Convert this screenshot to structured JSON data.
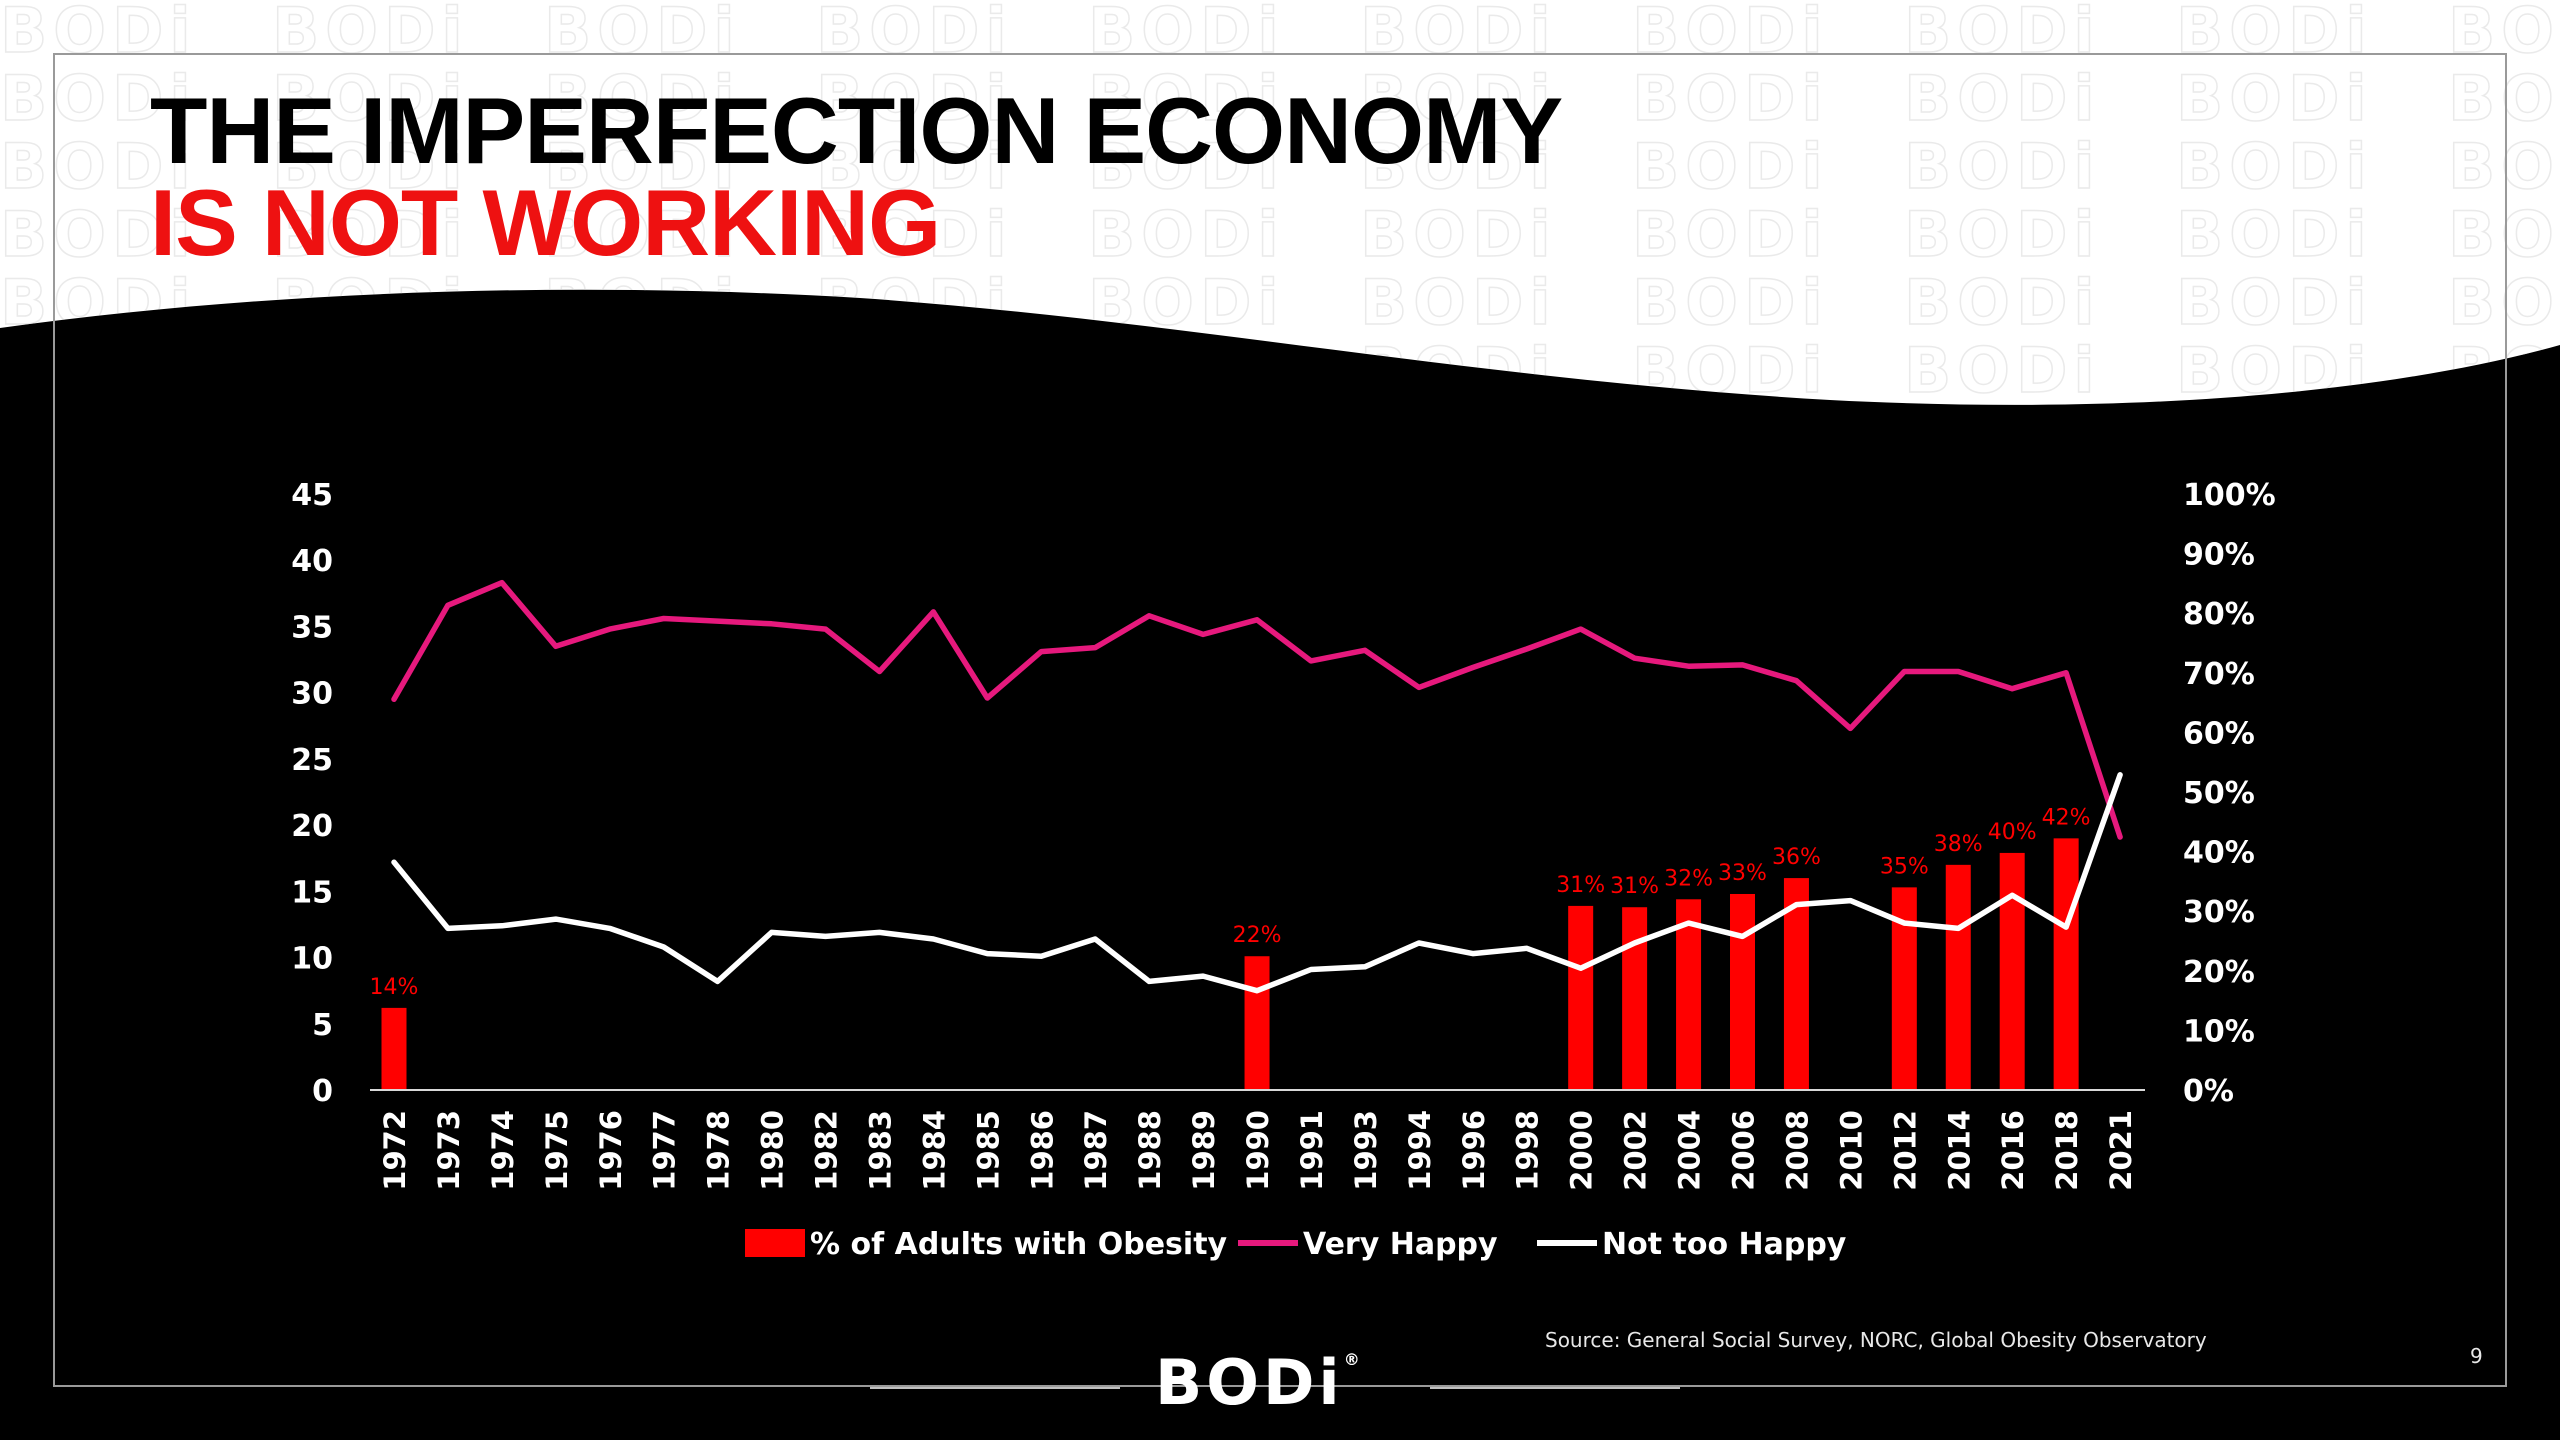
{
  "slide": {
    "title_line1": "THE IMPERFECTION ECONOMY",
    "title_line2": "IS NOT WORKING",
    "source": "Source: General Social Survey, NORC, Global Obesity Observatory",
    "page_number": "9",
    "logo_text": "BODi",
    "logo_mark": "®",
    "watermark_text": "BODi"
  },
  "colors": {
    "title_accent": "#ee1111",
    "obesity_bar": "#ff0000",
    "very_happy_line": "#e6197d",
    "not_too_happy_line": "#ffffff"
  },
  "chart_data": {
    "type": "bar+line",
    "categories": [
      "1972",
      "1973",
      "1974",
      "1975",
      "1976",
      "1977",
      "1978",
      "1980",
      "1982",
      "1983",
      "1984",
      "1985",
      "1986",
      "1987",
      "1988",
      "1989",
      "1990",
      "1991",
      "1993",
      "1994",
      "1996",
      "1998",
      "2000",
      "2002",
      "2004",
      "2006",
      "2008",
      "2010",
      "2012",
      "2014",
      "2016",
      "2018",
      "2021"
    ],
    "left_axis": {
      "min": 0,
      "max": 45,
      "ticks": [
        "0",
        "5",
        "10",
        "15",
        "20",
        "25",
        "30",
        "35",
        "40",
        "45"
      ]
    },
    "right_axis": {
      "min": 0,
      "max": 100,
      "ticks": [
        "0%",
        "10%",
        "20%",
        "30%",
        "40%",
        "50%",
        "60%",
        "70%",
        "80%",
        "90%",
        "100%"
      ]
    },
    "series": [
      {
        "name": "% of Adults with Obesity",
        "type": "bar",
        "axis": "left",
        "values": [
          6.2,
          null,
          null,
          null,
          null,
          null,
          null,
          null,
          null,
          null,
          null,
          null,
          null,
          null,
          null,
          null,
          10.1,
          null,
          null,
          null,
          null,
          null,
          13.9,
          13.8,
          14.4,
          14.8,
          16.0,
          null,
          15.3,
          17.0,
          17.9,
          19.0,
          null
        ],
        "labels": [
          "14%",
          "",
          "",
          "",
          "",
          "",
          "",
          "",
          "",
          "",
          "",
          "",
          "",
          "",
          "",
          "",
          "22%",
          "",
          "",
          "",
          "",
          "",
          "31%",
          "31%",
          "32%",
          "33%",
          "36%",
          "",
          "35%",
          "38%",
          "40%",
          "42%",
          ""
        ]
      },
      {
        "name": "Very Happy",
        "type": "line",
        "axis": "left",
        "values": [
          29.5,
          36.6,
          38.3,
          33.5,
          34.8,
          35.6,
          35.4,
          35.2,
          34.8,
          31.6,
          36.1,
          29.6,
          33.1,
          33.4,
          35.8,
          34.4,
          35.5,
          32.4,
          33.2,
          30.4,
          31.9,
          33.3,
          34.8,
          32.6,
          32.0,
          32.1,
          30.9,
          27.3,
          31.6,
          31.6,
          30.3,
          31.5,
          19.1
        ]
      },
      {
        "name": "Not too Happy",
        "type": "line",
        "axis": "left",
        "values": [
          17.2,
          12.2,
          12.4,
          12.9,
          12.2,
          10.8,
          8.2,
          11.9,
          11.6,
          11.9,
          11.4,
          10.3,
          10.1,
          11.4,
          8.2,
          8.6,
          7.5,
          9.1,
          9.3,
          11.1,
          10.3,
          10.7,
          9.2,
          11.1,
          12.6,
          11.6,
          14.0,
          14.3,
          12.6,
          12.2,
          14.7,
          12.3,
          23.8
        ]
      }
    ],
    "legend": {
      "placement": "bottom",
      "entries": [
        "% of Adults with Obesity",
        "Very Happy",
        "Not too Happy"
      ]
    },
    "grid": false,
    "background": "#000000"
  }
}
